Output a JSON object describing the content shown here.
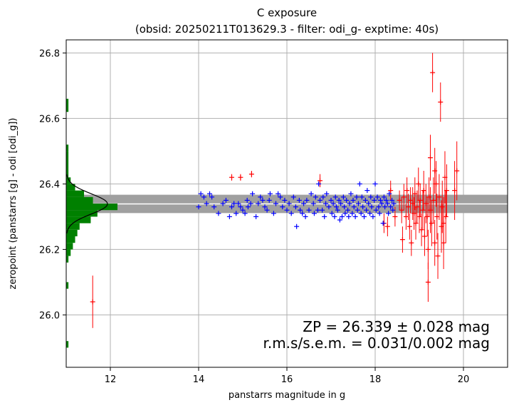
{
  "chart_data": {
    "type": "scatter",
    "title": "C exposure",
    "subtitle": "(obsid: 20250211T013629.3 - filter: odi_g- exptime: 40s)",
    "xlabel": "panstarrs magnitude in g",
    "ylabel": "zeropoint (panstarrs [g] - odi [odi_g])",
    "xlim": [
      11.0,
      21.0
    ],
    "ylim": [
      25.84,
      26.84
    ],
    "xticks": [
      12,
      14,
      16,
      18,
      20
    ],
    "yticks": [
      26.0,
      26.2,
      26.4,
      26.6,
      26.8
    ],
    "grid": true,
    "zeropoint": 26.339,
    "zp_band_halfwidth": 0.028,
    "annotation_zp": "ZP = 26.339 ± 0.028 mag",
    "annotation_rms": "r.m.s/s.e.m. = 0.031/0.002 mag",
    "colors": {
      "used": "#0000ff",
      "rejected": "#ff0000",
      "histogram": "#008000",
      "zp_band": "#a0a0a0",
      "zp_line": "#ffffff",
      "gaussian": "#000000",
      "grid": "#b0b0b0"
    },
    "series": [
      {
        "points": [
          [
            14.0,
            26.33
          ],
          [
            14.05,
            26.37
          ],
          [
            14.12,
            26.36
          ],
          [
            14.18,
            26.34
          ],
          [
            14.25,
            26.37
          ],
          [
            14.3,
            26.36
          ],
          [
            14.35,
            26.33
          ],
          [
            14.45,
            26.31
          ],
          [
            14.55,
            26.34
          ],
          [
            14.62,
            26.35
          ],
          [
            14.7,
            26.3
          ],
          [
            14.75,
            26.33
          ],
          [
            14.8,
            26.34
          ],
          [
            14.85,
            26.31
          ],
          [
            14.9,
            26.34
          ],
          [
            14.95,
            26.33
          ],
          [
            15.0,
            26.32
          ],
          [
            15.05,
            26.31
          ],
          [
            15.1,
            26.35
          ],
          [
            15.12,
            26.33
          ],
          [
            15.18,
            26.34
          ],
          [
            15.22,
            26.37
          ],
          [
            15.3,
            26.3
          ],
          [
            15.35,
            26.34
          ],
          [
            15.4,
            26.36
          ],
          [
            15.45,
            26.35
          ],
          [
            15.5,
            26.33
          ],
          [
            15.55,
            26.32
          ],
          [
            15.6,
            26.35
          ],
          [
            15.62,
            26.37
          ],
          [
            15.7,
            26.31
          ],
          [
            15.75,
            26.34
          ],
          [
            15.8,
            26.37
          ],
          [
            15.85,
            26.36
          ],
          [
            15.9,
            26.33
          ],
          [
            15.95,
            26.35
          ],
          [
            16.0,
            26.32
          ],
          [
            16.05,
            26.34
          ],
          [
            16.1,
            26.31
          ],
          [
            16.15,
            26.36
          ],
          [
            16.2,
            26.33
          ],
          [
            16.22,
            26.27
          ],
          [
            16.28,
            26.35
          ],
          [
            16.3,
            26.32
          ],
          [
            16.35,
            26.31
          ],
          [
            16.38,
            26.34
          ],
          [
            16.42,
            26.3
          ],
          [
            16.45,
            26.35
          ],
          [
            16.5,
            26.32
          ],
          [
            16.55,
            26.37
          ],
          [
            16.6,
            26.34
          ],
          [
            16.62,
            26.31
          ],
          [
            16.65,
            26.36
          ],
          [
            16.7,
            26.32
          ],
          [
            16.72,
            26.4
          ],
          [
            16.75,
            26.35
          ],
          [
            16.8,
            26.32
          ],
          [
            16.82,
            26.36
          ],
          [
            16.85,
            26.3
          ],
          [
            16.88,
            26.34
          ],
          [
            16.9,
            26.37
          ],
          [
            16.95,
            26.33
          ],
          [
            17.0,
            26.35
          ],
          [
            17.02,
            26.31
          ],
          [
            17.05,
            26.34
          ],
          [
            17.08,
            26.3
          ],
          [
            17.1,
            26.36
          ],
          [
            17.12,
            26.33
          ],
          [
            17.15,
            26.32
          ],
          [
            17.18,
            26.35
          ],
          [
            17.2,
            26.29
          ],
          [
            17.22,
            26.34
          ],
          [
            17.25,
            26.3
          ],
          [
            17.28,
            26.36
          ],
          [
            17.3,
            26.33
          ],
          [
            17.32,
            26.31
          ],
          [
            17.35,
            26.35
          ],
          [
            17.38,
            26.32
          ],
          [
            17.4,
            26.3
          ],
          [
            17.42,
            26.34
          ],
          [
            17.45,
            26.37
          ],
          [
            17.48,
            26.31
          ],
          [
            17.5,
            26.35
          ],
          [
            17.52,
            26.33
          ],
          [
            17.55,
            26.3
          ],
          [
            17.58,
            26.36
          ],
          [
            17.6,
            26.32
          ],
          [
            17.62,
            26.34
          ],
          [
            17.65,
            26.4
          ],
          [
            17.68,
            26.31
          ],
          [
            17.7,
            26.36
          ],
          [
            17.72,
            26.33
          ],
          [
            17.75,
            26.3
          ],
          [
            17.78,
            26.35
          ],
          [
            17.8,
            26.32
          ],
          [
            17.82,
            26.38
          ],
          [
            17.85,
            26.34
          ],
          [
            17.88,
            26.31
          ],
          [
            17.9,
            26.36
          ],
          [
            17.92,
            26.33
          ],
          [
            17.95,
            26.3
          ],
          [
            17.98,
            26.35
          ],
          [
            18.0,
            26.4
          ],
          [
            18.02,
            26.32
          ],
          [
            18.05,
            26.36
          ],
          [
            18.08,
            26.33
          ],
          [
            18.1,
            26.31
          ],
          [
            18.12,
            26.35
          ],
          [
            18.15,
            26.34
          ],
          [
            18.18,
            26.28
          ],
          [
            18.2,
            26.36
          ],
          [
            18.22,
            26.33
          ],
          [
            18.25,
            26.35
          ],
          [
            18.28,
            26.34
          ],
          [
            18.3,
            26.31
          ],
          [
            18.32,
            26.37
          ],
          [
            18.35,
            26.33
          ],
          [
            18.38,
            26.35
          ],
          [
            18.4,
            26.32
          ],
          [
            18.42,
            26.34
          ]
        ]
      },
      {
        "points": [
          [
            11.6,
            26.04,
            0.08
          ],
          [
            14.75,
            26.42,
            0.01
          ],
          [
            14.95,
            26.42,
            0.01
          ],
          [
            15.2,
            26.43,
            0.01
          ],
          [
            16.75,
            26.41,
            0.02
          ],
          [
            18.2,
            26.28,
            0.03
          ],
          [
            18.28,
            26.27,
            0.03
          ],
          [
            18.35,
            26.38,
            0.03
          ],
          [
            18.45,
            26.3,
            0.03
          ],
          [
            18.55,
            26.35,
            0.03
          ],
          [
            18.6,
            26.32,
            0.04
          ],
          [
            18.62,
            26.23,
            0.04
          ],
          [
            18.65,
            26.36,
            0.04
          ],
          [
            18.7,
            26.3,
            0.04
          ],
          [
            18.72,
            26.38,
            0.04
          ],
          [
            18.75,
            26.33,
            0.04
          ],
          [
            18.78,
            26.27,
            0.04
          ],
          [
            18.8,
            26.35,
            0.04
          ],
          [
            18.82,
            26.22,
            0.04
          ],
          [
            18.85,
            26.34,
            0.05
          ],
          [
            18.88,
            26.31,
            0.05
          ],
          [
            18.9,
            26.37,
            0.05
          ],
          [
            18.92,
            26.28,
            0.05
          ],
          [
            18.95,
            26.33,
            0.05
          ],
          [
            18.98,
            26.4,
            0.05
          ],
          [
            19.0,
            26.3,
            0.05
          ],
          [
            19.02,
            26.35,
            0.05
          ],
          [
            19.05,
            26.26,
            0.05
          ],
          [
            19.08,
            26.32,
            0.06
          ],
          [
            19.1,
            26.38,
            0.06
          ],
          [
            19.12,
            26.24,
            0.06
          ],
          [
            19.15,
            26.34,
            0.06
          ],
          [
            19.18,
            26.3,
            0.06
          ],
          [
            19.2,
            26.2,
            0.06
          ],
          [
            19.2,
            26.1,
            0.06
          ],
          [
            19.22,
            26.36,
            0.06
          ],
          [
            19.25,
            26.48,
            0.07
          ],
          [
            19.28,
            26.28,
            0.07
          ],
          [
            19.3,
            26.74,
            0.06
          ],
          [
            19.32,
            26.35,
            0.07
          ],
          [
            19.35,
            26.22,
            0.07
          ],
          [
            19.38,
            26.4,
            0.07
          ],
          [
            19.4,
            26.3,
            0.07
          ],
          [
            19.42,
            26.18,
            0.07
          ],
          [
            19.45,
            26.36,
            0.07
          ],
          [
            19.48,
            26.65,
            0.06
          ],
          [
            19.5,
            26.27,
            0.08
          ],
          [
            19.52,
            26.33,
            0.08
          ],
          [
            19.55,
            26.22,
            0.08
          ],
          [
            19.58,
            26.42,
            0.08
          ],
          [
            19.6,
            26.3,
            0.08
          ],
          [
            19.62,
            26.38,
            0.08
          ],
          [
            19.25,
            26.32,
            0.07
          ],
          [
            19.35,
            26.44,
            0.07
          ],
          [
            19.55,
            26.28,
            0.08
          ],
          [
            19.8,
            26.38,
            0.09
          ],
          [
            19.85,
            26.44,
            0.09
          ]
        ]
      }
    ],
    "histogram": {
      "bin_edges": [
        25.9,
        25.92,
        26.08,
        26.1,
        26.16,
        26.18,
        26.2,
        26.22,
        26.24,
        26.26,
        26.28,
        26.3,
        26.32,
        26.34,
        26.36,
        26.38,
        26.4,
        26.42,
        26.5,
        26.52,
        26.62,
        26.66
      ],
      "counts": [
        1,
        0,
        1,
        0,
        1,
        2,
        3,
        4,
        5,
        6,
        11,
        14,
        23,
        12,
        8,
        4,
        2,
        1,
        1,
        0,
        1
      ],
      "gaussian_peak_count": 18.5,
      "gaussian_mean": 26.339,
      "gaussian_sigma": 0.031
    }
  }
}
